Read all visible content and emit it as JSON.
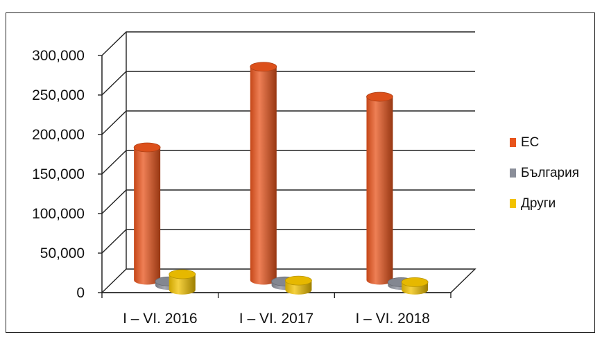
{
  "chart_data": {
    "type": "bar",
    "title": "",
    "xlabel": "",
    "ylabel": "",
    "categories": [
      "I – VI. 2016",
      "I – VI. 2017",
      "I – VI. 2018"
    ],
    "series": [
      {
        "name": "ЕС",
        "values": [
          168000,
          270000,
          232000
        ],
        "color": "#e8541c"
      },
      {
        "name": "България",
        "values": [
          5000,
          5000,
          4000
        ],
        "color": "#8a8e99"
      },
      {
        "name": "Други",
        "values": [
          20000,
          12000,
          10000
        ],
        "color": "#f2c200"
      }
    ],
    "ylim": [
      0,
      300000
    ],
    "yticks": [
      "0",
      "50,000",
      "100,000",
      "150,000",
      "200,000",
      "250,000",
      "300,000"
    ],
    "grid": true,
    "legend": "right",
    "style": "3d-cylinder"
  }
}
